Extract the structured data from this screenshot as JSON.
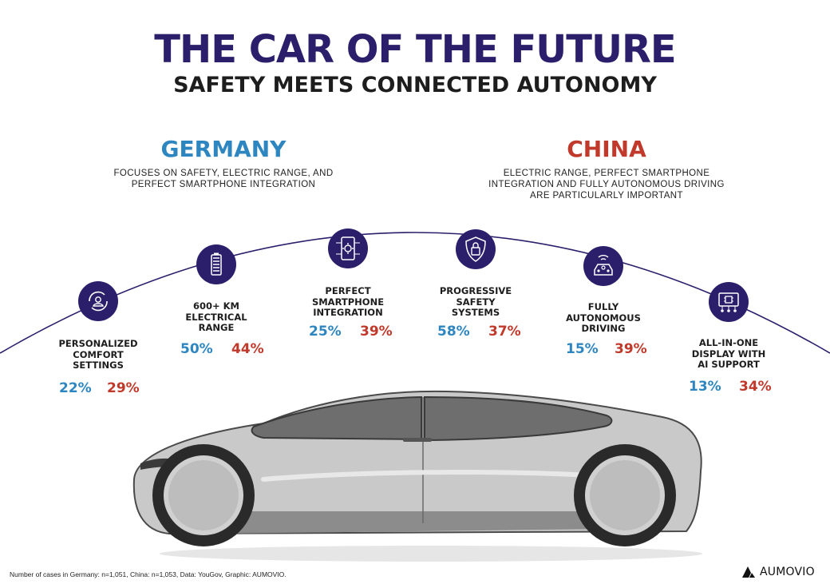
{
  "header": {
    "title": "THE CAR OF THE FUTURE",
    "subtitle": "SAFETY MEETS CONNECTED AUTONOMY"
  },
  "regions": {
    "germany": {
      "name": "GERMANY",
      "description_line1": "FOCUSES ON SAFETY, ELECTRIC RANGE, AND",
      "description_line2": "PERFECT SMARTPHONE INTEGRATION",
      "color": "#2e86c1"
    },
    "china": {
      "name": "CHINA",
      "description_line1": "ELECTRIC RANGE, PERFECT SMARTPHONE",
      "description_line2": "INTEGRATION AND FULLY AUTONOMOUS DRIVING",
      "description_line3": "ARE PARTICULARLY IMPORTANT",
      "color": "#c0392b"
    }
  },
  "features": [
    {
      "icon": "person-cycle-icon",
      "label_lines": [
        "PERSONALIZED",
        "COMFORT",
        "SETTINGS"
      ],
      "germany": "22%",
      "china": "29%"
    },
    {
      "icon": "battery-icon",
      "label_lines": [
        "600+ KM",
        "ELECTRICAL",
        "RANGE"
      ],
      "germany": "50%",
      "china": "44%"
    },
    {
      "icon": "smartphone-gear-icon",
      "label_lines": [
        "PERFECT",
        "SMARTPHONE",
        "INTEGRATION"
      ],
      "germany": "25%",
      "china": "39%"
    },
    {
      "icon": "shield-lock-icon",
      "label_lines": [
        "PROGRESSIVE",
        "SAFETY",
        "SYSTEMS"
      ],
      "germany": "58%",
      "china": "37%"
    },
    {
      "icon": "autonomous-car-icon",
      "label_lines": [
        "FULLY",
        "AUTONOMOUS",
        "DRIVING"
      ],
      "germany": "15%",
      "china": "39%"
    },
    {
      "icon": "chip-display-icon",
      "label_lines": [
        "ALL-IN-ONE",
        "DISPLAY WITH",
        "AI SUPPORT"
      ],
      "germany": "13%",
      "china": "34%"
    }
  ],
  "footer": {
    "note": "Number of cases in Germany: n=1,051, China: n=1,053, Data: YouGov, Graphic: AUMOVIO.",
    "brand": "AUMOVIO"
  },
  "colors": {
    "accent": "#2b1f6b",
    "germany": "#2e86c1",
    "china": "#c0392b"
  }
}
